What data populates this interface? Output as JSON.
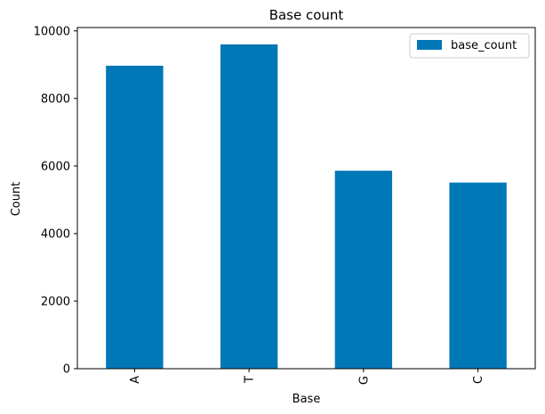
{
  "chart_data": {
    "type": "bar",
    "title": "Base count",
    "xlabel": "Base",
    "ylabel": "Count",
    "categories": [
      "A",
      "T",
      "G",
      "C"
    ],
    "series": [
      {
        "name": "base_count",
        "values": [
          8970,
          9600,
          5860,
          5510
        ],
        "color": "#0077b6"
      }
    ],
    "ylim": [
      0,
      10100
    ],
    "yticks": [
      0,
      2000,
      4000,
      6000,
      8000,
      10000
    ],
    "ytick_labels": [
      "0",
      "2000",
      "4000",
      "6000",
      "8000",
      "10000"
    ],
    "grid": false,
    "legend": {
      "position": "top-right",
      "entries": [
        "base_count"
      ]
    },
    "xtick_rotation": "vertical"
  }
}
